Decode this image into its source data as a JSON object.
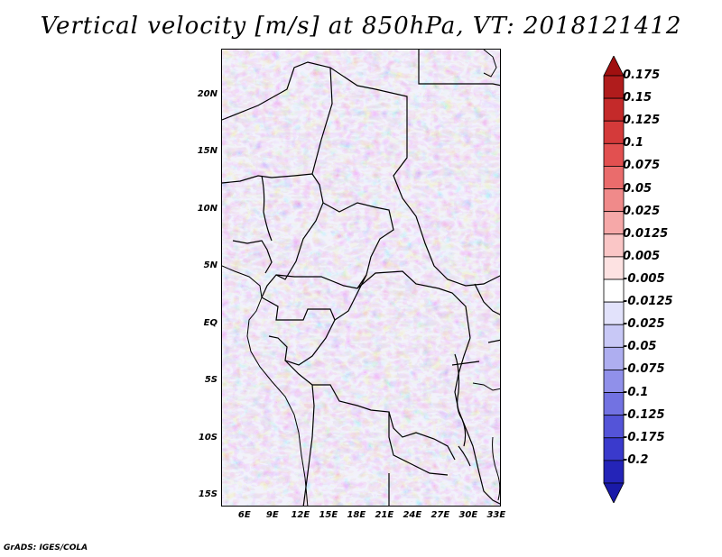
{
  "title": "Vertical velocity [m/s] at 850hPa, VT: 2018121412",
  "footer": "GrADS: IGES/COLA",
  "map": {
    "variable": "Vertical velocity",
    "units": "m/s",
    "level": "850hPa",
    "valid_time": "2018121412",
    "lon_range": [
      3.5,
      33.5
    ],
    "lat_range": [
      -16,
      24
    ],
    "lat_ticks": [
      {
        "value": 20,
        "label": "20N"
      },
      {
        "value": 15,
        "label": "15N"
      },
      {
        "value": 10,
        "label": "10N"
      },
      {
        "value": 5,
        "label": "5N"
      },
      {
        "value": 0,
        "label": "EQ"
      },
      {
        "value": -5,
        "label": "5S"
      },
      {
        "value": -10,
        "label": "10S"
      },
      {
        "value": -15,
        "label": "15S"
      }
    ],
    "lon_ticks": [
      {
        "value": 6,
        "label": "6E"
      },
      {
        "value": 9,
        "label": "9E"
      },
      {
        "value": 12,
        "label": "12E"
      },
      {
        "value": 15,
        "label": "15E"
      },
      {
        "value": 18,
        "label": "18E"
      },
      {
        "value": 21,
        "label": "21E"
      },
      {
        "value": 24,
        "label": "24E"
      },
      {
        "value": 27,
        "label": "27E"
      },
      {
        "value": 30,
        "label": "30E"
      },
      {
        "value": 33,
        "label": "33E"
      }
    ]
  },
  "colorbar": {
    "levels": [
      {
        "label": "0.175",
        "color": "#b01c1c"
      },
      {
        "label": "0.15",
        "color": "#c42a2a"
      },
      {
        "label": "0.125",
        "color": "#d43a3a"
      },
      {
        "label": "0.1",
        "color": "#e25050"
      },
      {
        "label": "0.075",
        "color": "#ea6c6c"
      },
      {
        "label": "0.05",
        "color": "#f08a8a"
      },
      {
        "label": "0.025",
        "color": "#f6a8a8"
      },
      {
        "label": "0.0125",
        "color": "#fac6c6"
      },
      {
        "label": "0.005",
        "color": "#fde2e2"
      },
      {
        "label": "-0.005",
        "color": "#ffffff"
      },
      {
        "label": "-0.0125",
        "color": "#e2e2fb"
      },
      {
        "label": "-0.025",
        "color": "#c8c8f6"
      },
      {
        "label": "-0.05",
        "color": "#aeaef0"
      },
      {
        "label": "-0.075",
        "color": "#9090ea"
      },
      {
        "label": "-0.1",
        "color": "#7272e2"
      },
      {
        "label": "-0.125",
        "color": "#5454d8"
      },
      {
        "label": "-0.175",
        "color": "#3a3acc"
      },
      {
        "label": "-0.2",
        "color": "#2424b8"
      }
    ],
    "over_color": "#a01010",
    "under_color": "#1a1aa8"
  }
}
